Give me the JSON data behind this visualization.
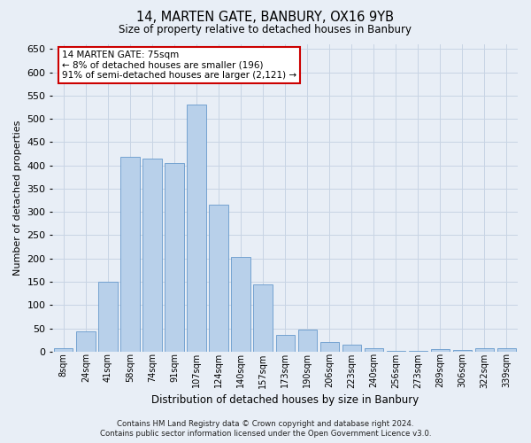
{
  "title_line1": "14, MARTEN GATE, BANBURY, OX16 9YB",
  "title_line2": "Size of property relative to detached houses in Banbury",
  "xlabel": "Distribution of detached houses by size in Banbury",
  "ylabel": "Number of detached properties",
  "annotation_title": "14 MARTEN GATE: 75sqm",
  "annotation_line2": "← 8% of detached houses are smaller (196)",
  "annotation_line3": "91% of semi-detached houses are larger (2,121) →",
  "footer_line1": "Contains HM Land Registry data © Crown copyright and database right 2024.",
  "footer_line2": "Contains public sector information licensed under the Open Government Licence v3.0.",
  "categories": [
    "8sqm",
    "24sqm",
    "41sqm",
    "58sqm",
    "74sqm",
    "91sqm",
    "107sqm",
    "124sqm",
    "140sqm",
    "157sqm",
    "173sqm",
    "190sqm",
    "206sqm",
    "223sqm",
    "240sqm",
    "256sqm",
    "273sqm",
    "289sqm",
    "306sqm",
    "322sqm",
    "339sqm"
  ],
  "values": [
    8,
    44,
    150,
    418,
    415,
    405,
    530,
    315,
    203,
    145,
    35,
    48,
    20,
    14,
    8,
    2,
    2,
    5,
    3,
    8,
    8
  ],
  "bar_color": "#b8d0ea",
  "bar_edge_color": "#6699cc",
  "ylim": [
    0,
    660
  ],
  "yticks": [
    0,
    50,
    100,
    150,
    200,
    250,
    300,
    350,
    400,
    450,
    500,
    550,
    600,
    650
  ],
  "grid_color": "#c8d4e4",
  "background_color": "#e8eef6",
  "annotation_box_facecolor": "#ffffff",
  "annotation_box_edgecolor": "#cc0000",
  "fig_width": 6.0,
  "fig_height": 5.0,
  "dpi": 100
}
